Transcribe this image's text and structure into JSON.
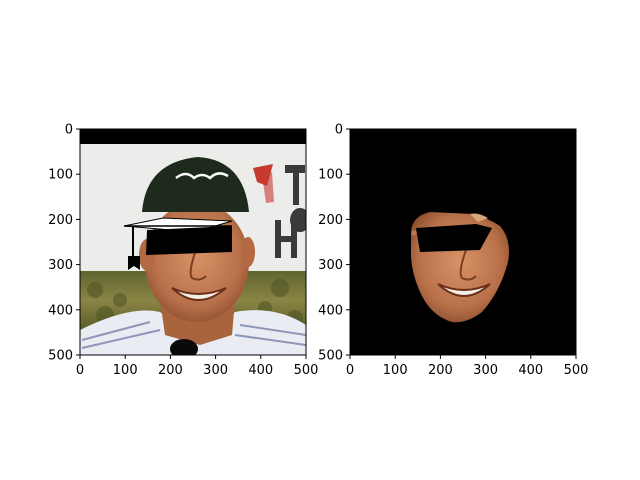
{
  "figure": {
    "panels": [
      {
        "name": "original-with-overlay",
        "description_icons": [
          "graduation-cap-icon",
          "black-censor-bar"
        ],
        "x_ticks": [
          "0",
          "100",
          "200",
          "300",
          "400",
          "500"
        ],
        "y_ticks": [
          "0",
          "100",
          "200",
          "300",
          "400",
          "500"
        ],
        "xlim": [
          0,
          500
        ],
        "ylim": [
          500,
          0
        ]
      },
      {
        "name": "segmented-face",
        "x_ticks": [
          "0",
          "100",
          "200",
          "300",
          "400",
          "500"
        ],
        "y_ticks": [
          "0",
          "100",
          "200",
          "300",
          "400",
          "500"
        ],
        "xlim": [
          0,
          500
        ],
        "ylim": [
          500,
          0
        ]
      }
    ],
    "colors": {
      "background": "#000000",
      "skin": "#c07a4c",
      "skin_shadow": "#8a4e2c",
      "cap": "#1e2a1c",
      "shirt": "#e9ecf3",
      "shirt_stripe": "#6f78a6",
      "hedge": "#6e7135",
      "wall": "#ececea",
      "sign_red": "#c73a2e"
    }
  }
}
